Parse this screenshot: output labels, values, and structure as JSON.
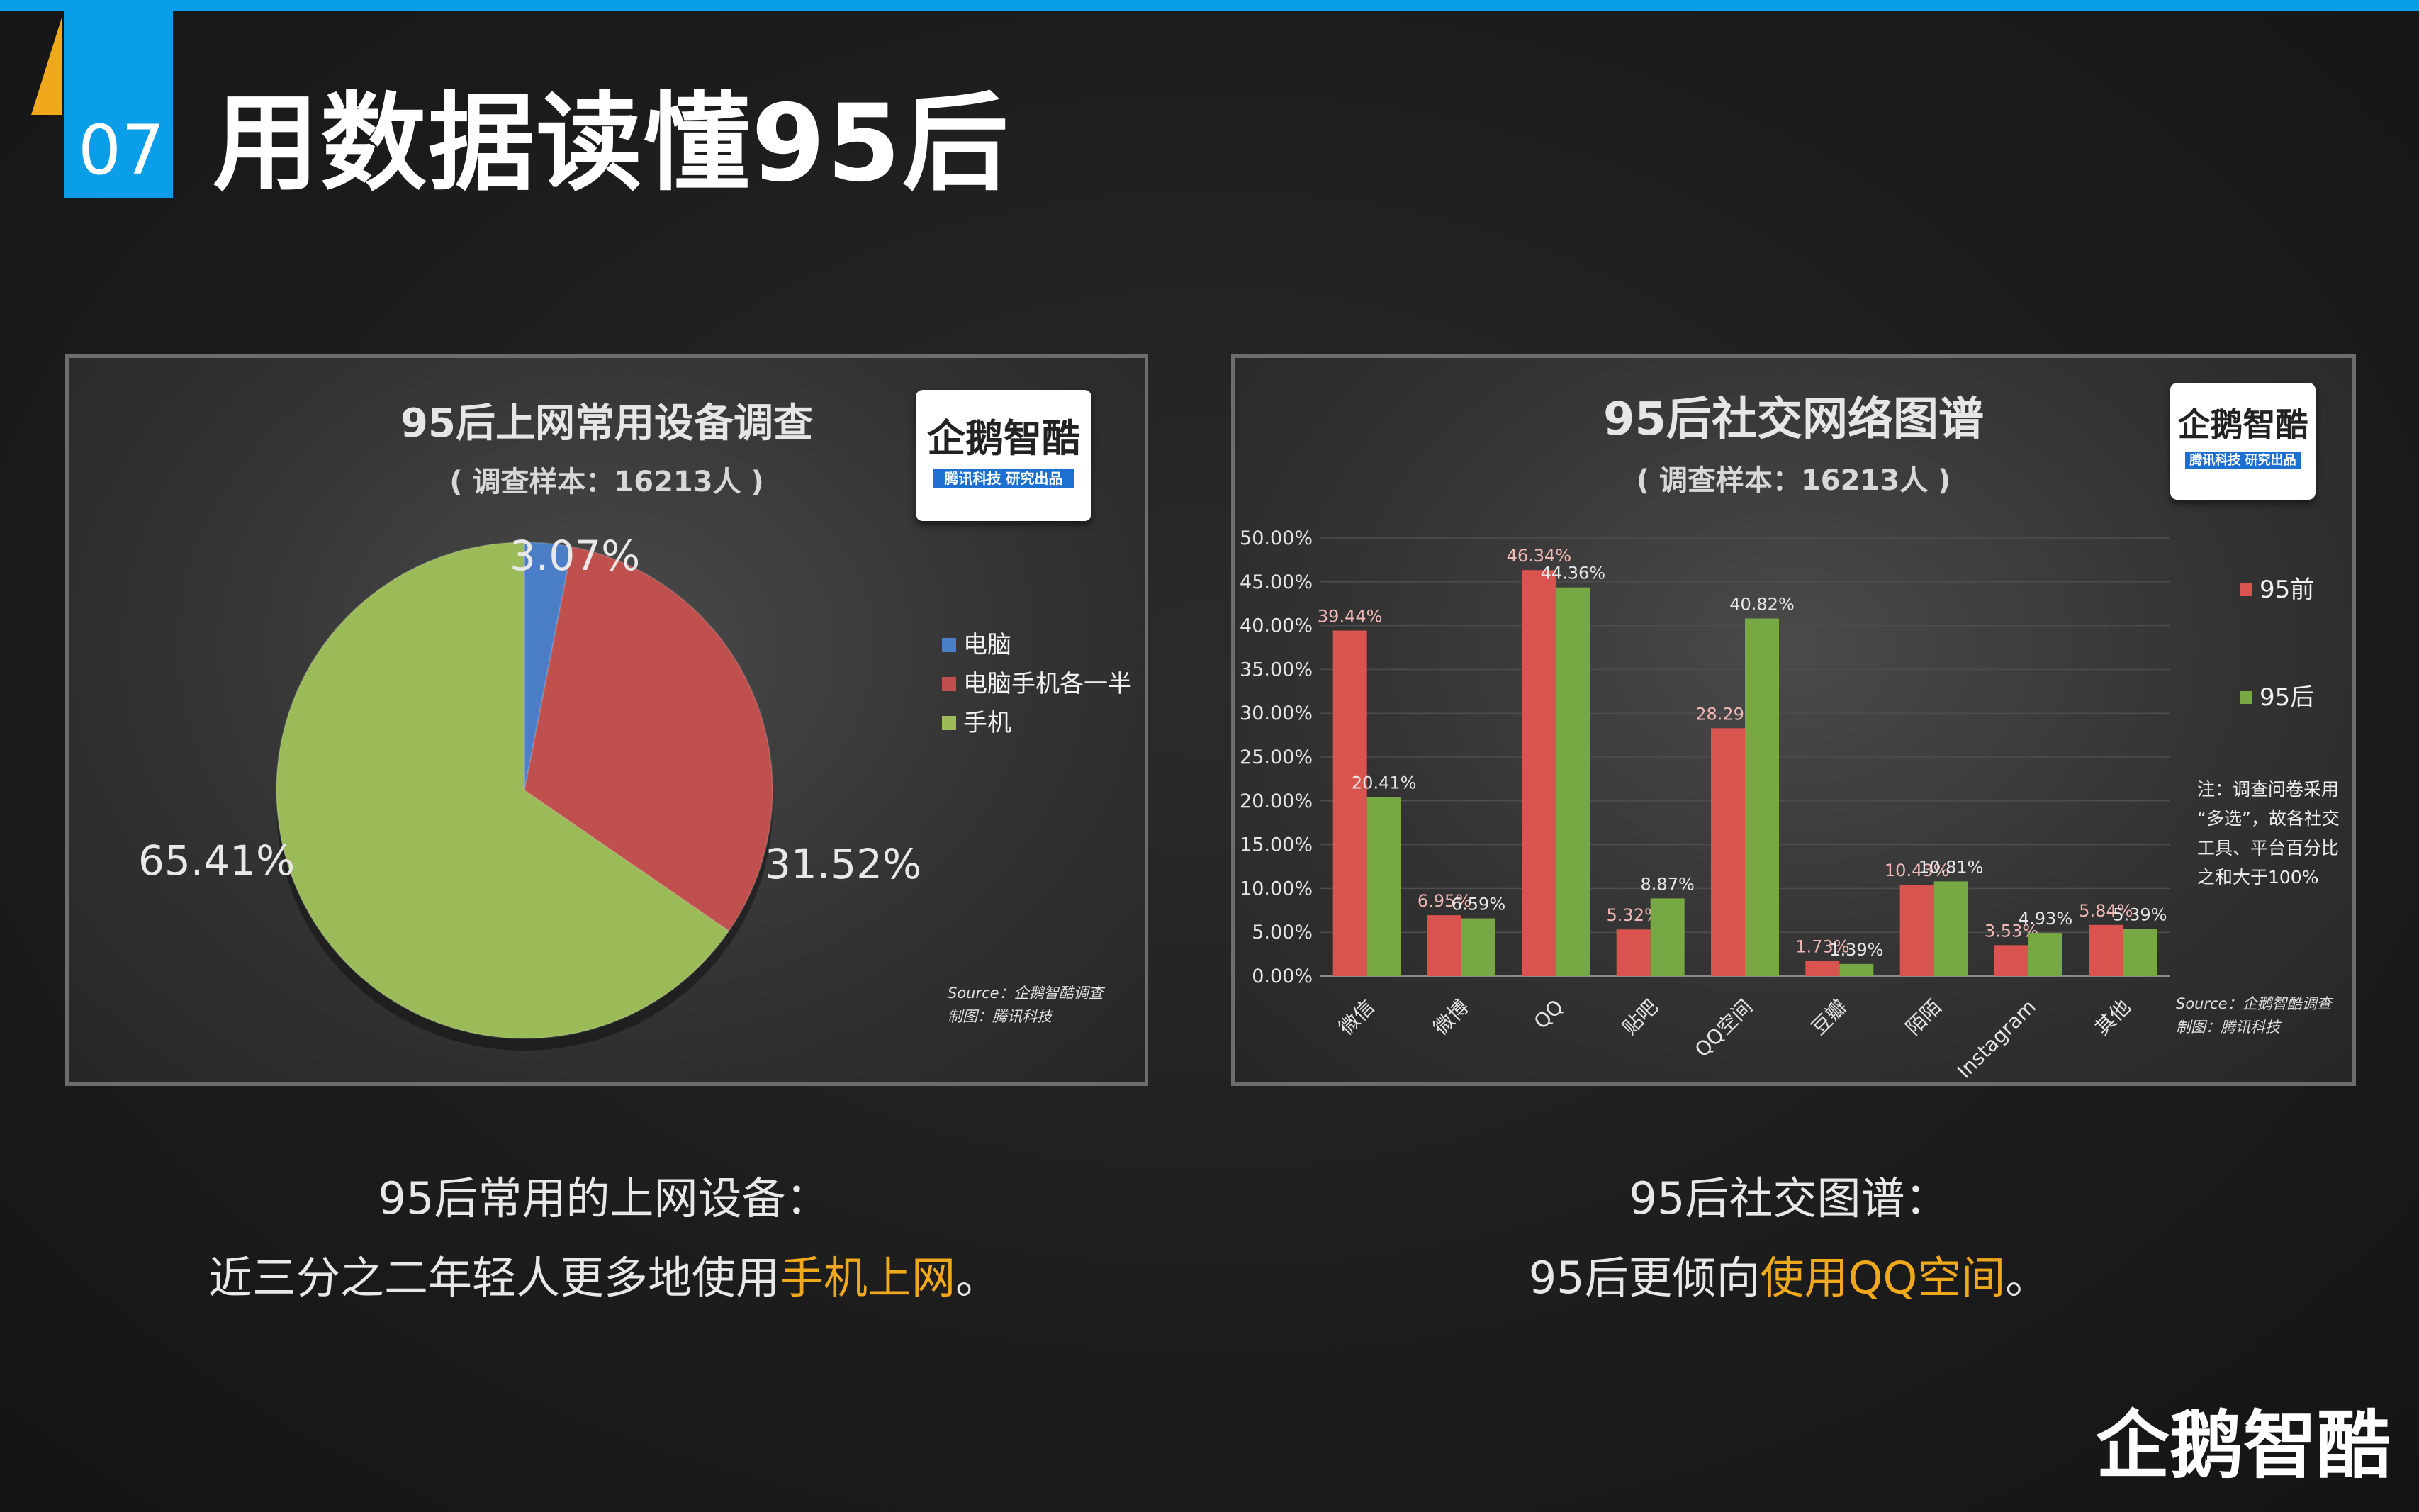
{
  "slide": {
    "number": "07",
    "title": "用数据读懂95后"
  },
  "colors": {
    "topbar": "#0a9ee8",
    "accent_orange": "#f0a81c",
    "pie_blue": "#4a7ec7",
    "pie_red": "#c0504d",
    "pie_green": "#9bbb59",
    "bar_before": "#d9534f",
    "bar_after": "#77a843"
  },
  "logo": {
    "name": "企鹅智酷",
    "tagline": "腾讯科技 研究出品"
  },
  "chart_data": [
    {
      "type": "pie",
      "title": "95后上网常用设备调查",
      "subtitle": "( 调查样本：16213人 )",
      "labels": [
        "电脑",
        "电脑手机各一半",
        "手机"
      ],
      "values": [
        3.07,
        31.52,
        65.41
      ],
      "value_labels": [
        "3.07%",
        "31.52%",
        "65.41%"
      ],
      "colors": [
        "#4a7ec7",
        "#c0504d",
        "#9bbb59"
      ],
      "legend_position": "right",
      "source": "Source：企鹅智酷调查",
      "made_by": "制图：腾讯科技"
    },
    {
      "type": "bar",
      "title": "95后社交网络图谱",
      "subtitle": "( 调查样本：16213人 )",
      "categories": [
        "微信",
        "微博",
        "QQ",
        "贴吧",
        "QQ空间",
        "豆瓣",
        "陌陌",
        "Instagram",
        "其他"
      ],
      "series": [
        {
          "name": "95前",
          "values": [
            39.44,
            6.95,
            46.34,
            5.32,
            28.29,
            1.73,
            10.43,
            3.53,
            5.84
          ],
          "color": "#d9534f"
        },
        {
          "name": "95后",
          "values": [
            20.41,
            6.59,
            44.36,
            8.87,
            40.82,
            1.39,
            10.81,
            4.93,
            5.39
          ],
          "color": "#77a843"
        }
      ],
      "ylim": [
        0,
        50
      ],
      "yticks": [
        "0.00%",
        "5.00%",
        "10.00%",
        "15.00%",
        "20.00%",
        "25.00%",
        "30.00%",
        "35.00%",
        "40.00%",
        "45.00%",
        "50.00%"
      ],
      "grid": true,
      "legend_position": "right",
      "note": [
        "注：调查问卷采用",
        "“多选”，故各社交",
        "工具、平台百分比",
        "之和大于100%"
      ],
      "source": "Source：企鹅智酷调查",
      "made_by": "制图：腾讯科技"
    }
  ],
  "captions": {
    "left": {
      "line1": "95后常用的上网设备：",
      "line2_pre": "近三分之二年轻人更多地使用",
      "line2_hl": "手机上网",
      "line2_post": "。"
    },
    "right": {
      "line1": "95后社交图谱：",
      "line2_pre": "95后更倾向",
      "line2_hl": "使用QQ空间",
      "line2_post": "。"
    }
  }
}
